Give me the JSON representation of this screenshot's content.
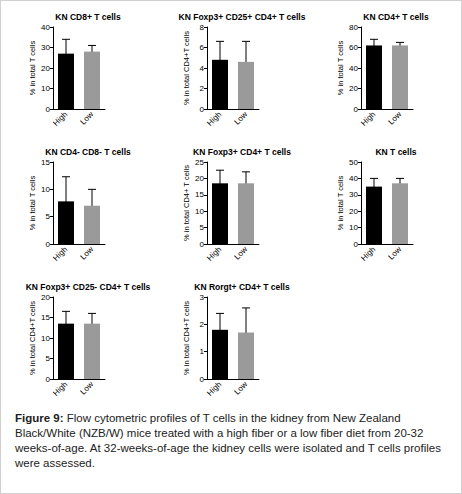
{
  "chart_data": [
    {
      "type": "bar",
      "title": "KN CD8+ T cells",
      "y_label": "% in total T cells",
      "categories": [
        "High",
        "Low"
      ],
      "values": [
        27,
        28
      ],
      "errors": [
        7,
        3
      ],
      "colors": [
        "#000000",
        "#9a9a9a"
      ],
      "ylim": [
        0,
        40
      ],
      "yticks": [
        0,
        10,
        20,
        30,
        40
      ],
      "grid": false
    },
    {
      "type": "bar",
      "title": "KN Foxp3+ CD25+ CD4+ T cells",
      "y_label": "% in total CD4+T cells",
      "categories": [
        "High",
        "Low"
      ],
      "values": [
        4.8,
        4.6
      ],
      "errors": [
        1.8,
        2
      ],
      "colors": [
        "#000000",
        "#9a9a9a"
      ],
      "ylim": [
        0,
        8
      ],
      "yticks": [
        0,
        2,
        4,
        6,
        8
      ],
      "grid": false
    },
    {
      "type": "bar",
      "title": "KN CD4+ T cells",
      "y_label": "% in total T cells",
      "categories": [
        "High",
        "Low"
      ],
      "values": [
        62,
        62
      ],
      "errors": [
        6,
        3
      ],
      "colors": [
        "#000000",
        "#9a9a9a"
      ],
      "ylim": [
        0,
        80
      ],
      "yticks": [
        0,
        20,
        40,
        60,
        80
      ],
      "grid": false
    },
    {
      "type": "bar",
      "title": "KN CD4- CD8- T cells",
      "y_label": "% in total T cells",
      "categories": [
        "High",
        "Low"
      ],
      "values": [
        7.8,
        7
      ],
      "errors": [
        4.5,
        3
      ],
      "colors": [
        "#000000",
        "#9a9a9a"
      ],
      "ylim": [
        0,
        15
      ],
      "yticks": [
        0,
        5,
        10,
        15
      ],
      "grid": false
    },
    {
      "type": "bar",
      "title": "KN Foxp3+ CD4+ T cells",
      "y_label": "% in total CD4+ T cells",
      "categories": [
        "High",
        "Low"
      ],
      "values": [
        18.5,
        18.5
      ],
      "errors": [
        4,
        3.5
      ],
      "colors": [
        "#000000",
        "#9a9a9a"
      ],
      "ylim": [
        0,
        25
      ],
      "yticks": [
        0,
        5,
        10,
        15,
        20,
        25
      ],
      "grid": false
    },
    {
      "type": "bar",
      "title": "KN T cells",
      "y_label": "% in total T cells",
      "categories": [
        "High",
        "Low"
      ],
      "values": [
        35,
        37
      ],
      "errors": [
        5,
        3
      ],
      "colors": [
        "#000000",
        "#9a9a9a"
      ],
      "ylim": [
        0,
        50
      ],
      "yticks": [
        0,
        10,
        20,
        30,
        40,
        50
      ],
      "grid": false
    },
    {
      "type": "bar",
      "title": "KN Foxp3+ CD25- CD4+ T cells",
      "y_label": "% in total CD4+T cells",
      "categories": [
        "High",
        "Low"
      ],
      "values": [
        13.5,
        13.5
      ],
      "errors": [
        3,
        2.5
      ],
      "colors": [
        "#000000",
        "#9a9a9a"
      ],
      "ylim": [
        0,
        20
      ],
      "yticks": [
        0,
        5,
        10,
        15,
        20
      ],
      "grid": false
    },
    {
      "type": "bar",
      "title": "KN Rorgt+ CD4+ T cells",
      "y_label": "% in total CD4+T cells",
      "categories": [
        "High",
        "Low"
      ],
      "values": [
        1.8,
        1.7
      ],
      "errors": [
        0.6,
        0.9
      ],
      "colors": [
        "#000000",
        "#9a9a9a"
      ],
      "ylim": [
        0,
        3
      ],
      "yticks": [
        0,
        1,
        2,
        3
      ],
      "grid": false
    }
  ],
  "caption": {
    "label": "Figure 9:",
    "text": "Flow cytometric profiles of T cells in the kidney from New Zealand Black/White (NZB/W) mice treated with a high fiber or a low fiber diet from 20-32 weeks-of-age. At 32-weeks-of-age the kidney cells were isolated and T cells profiles were assessed."
  }
}
